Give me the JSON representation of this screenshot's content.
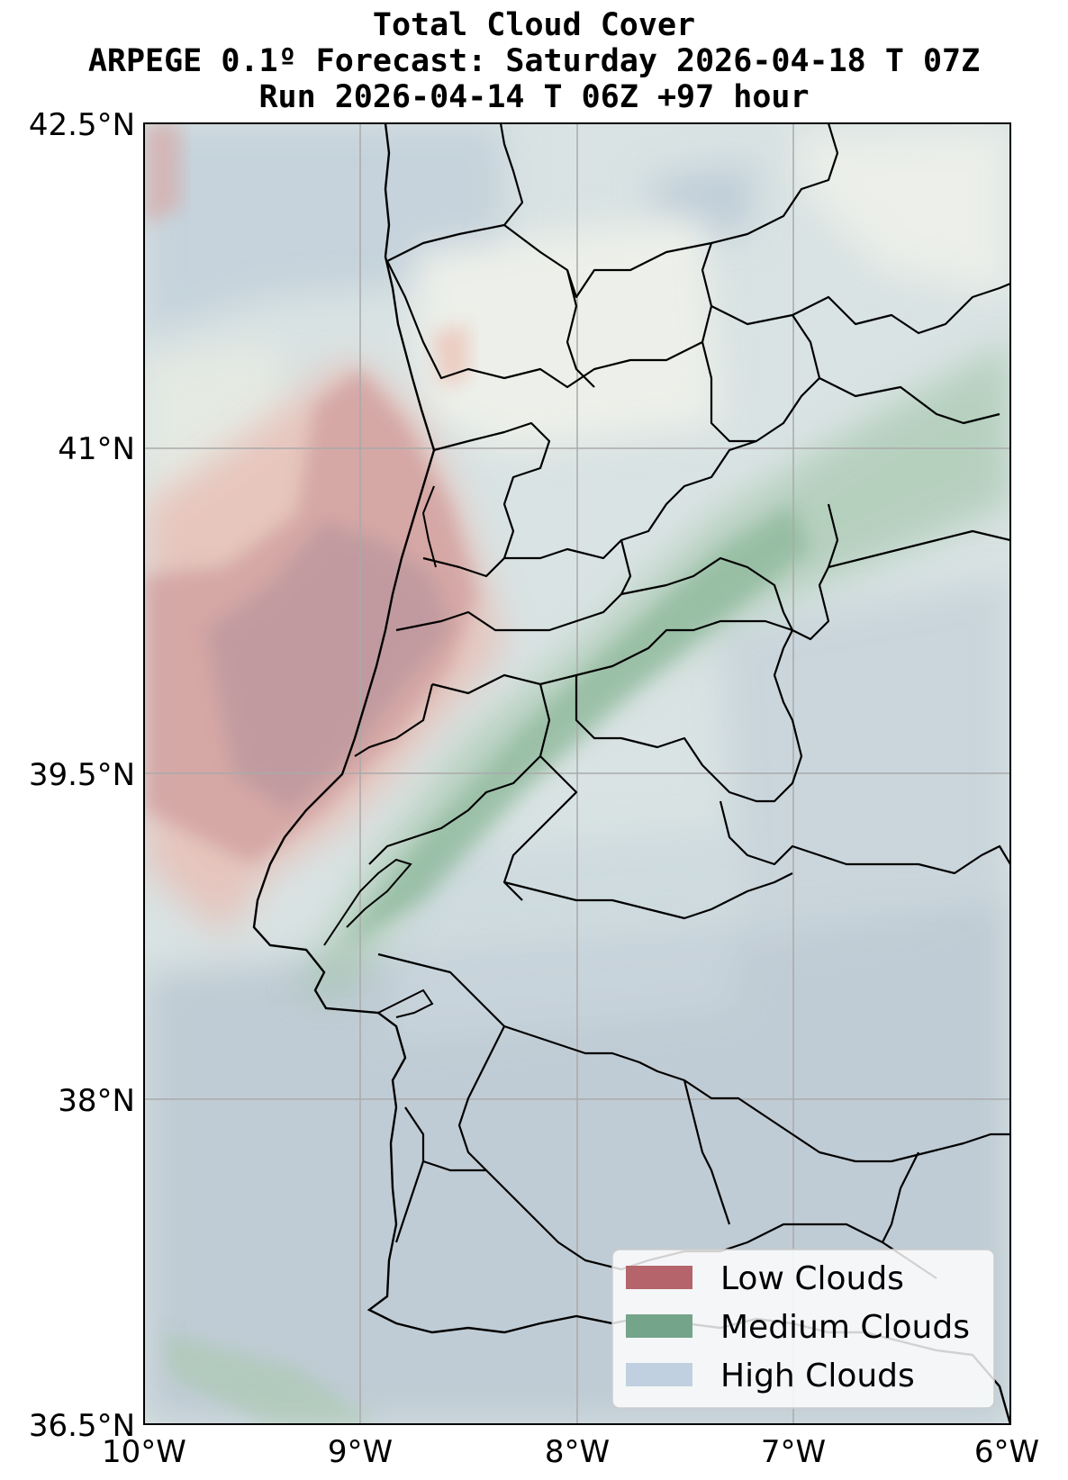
{
  "title": {
    "line1": "Total Cloud Cover",
    "line2": "ARPEGE 0.1º Forecast: Saturday 2026-04-18 T 07Z",
    "line3": "Run 2026-04-14 T 06Z +97 hour"
  },
  "axes": {
    "lat_ticks": [
      "42.5°N",
      "41°N",
      "39.5°N",
      "38°N",
      "36.5°N"
    ],
    "lon_ticks": [
      "10°W",
      "9°W",
      "8°W",
      "7°W",
      "6°W"
    ],
    "lat_range": [
      36.5,
      42.5
    ],
    "lon_range": [
      -10,
      -6
    ],
    "grid": true
  },
  "legend": {
    "placement": "bottom-right",
    "items": [
      {
        "label": "Low Clouds",
        "color": "#b5646b"
      },
      {
        "label": "Medium Clouds",
        "color": "#74a48a"
      },
      {
        "label": "High Clouds",
        "color": "#c0d0e0"
      }
    ]
  },
  "colors": {
    "low_clouds": "#b5646b",
    "medium_clouds": "#74a48a",
    "high_clouds": "#c0d0e0",
    "map_background": "#dfe7e6",
    "borders": "#000000",
    "gridlines": "#aaaaaa"
  }
}
